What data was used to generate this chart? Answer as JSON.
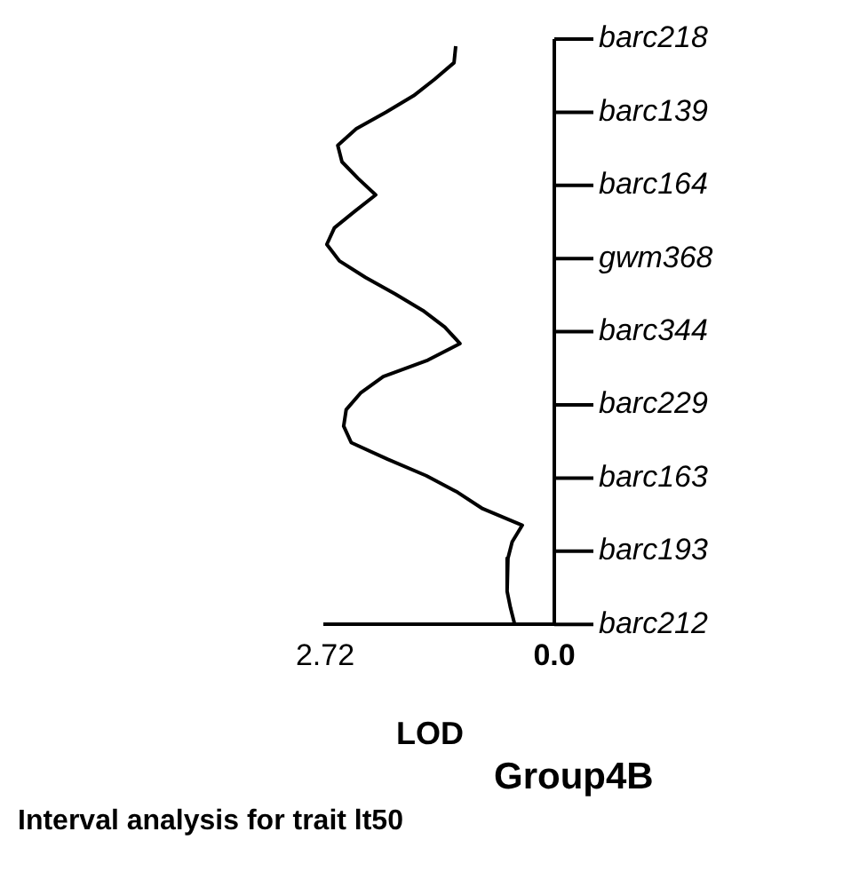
{
  "chart_data": {
    "type": "line",
    "orientation": "horizontal",
    "title": "Interval analysis for trait lt50",
    "subtitle": "Group4B",
    "xlabel": "LOD",
    "categories": [
      null,
      null,
      null,
      null,
      null,
      null,
      null,
      null,
      null,
      null,
      null,
      null,
      null,
      null,
      null,
      null,
      null,
      null,
      null,
      null,
      null,
      null,
      null,
      null,
      null,
      null,
      null,
      null,
      null,
      null,
      null,
      null,
      null,
      null,
      null,
      null
    ],
    "values": [
      1.17,
      1.19,
      1.42,
      1.67,
      2.0,
      2.35,
      2.57,
      2.52,
      2.33,
      2.12,
      2.37,
      2.61,
      2.7,
      2.55,
      2.24,
      1.89,
      1.56,
      1.3,
      1.12,
      1.5,
      2.03,
      2.3,
      2.47,
      2.5,
      2.41,
      1.98,
      1.52,
      1.15,
      0.85,
      0.38,
      0.5,
      0.55,
      0.56,
      0.56,
      0.52,
      0.47
    ],
    "color": "#000000",
    "marker": "none",
    "line_style": "solid",
    "xlim": [
      2.72,
      0
    ],
    "xticks": [
      2.72,
      {
        "value": 0,
        "label": "0.0"
      }
    ],
    "tick_labels": "x",
    "annotations": [
      "barc218",
      "barc139",
      "barc164",
      "gwm368",
      "barc344",
      "barc229",
      "barc163",
      "barc193",
      "barc212"
    ]
  }
}
